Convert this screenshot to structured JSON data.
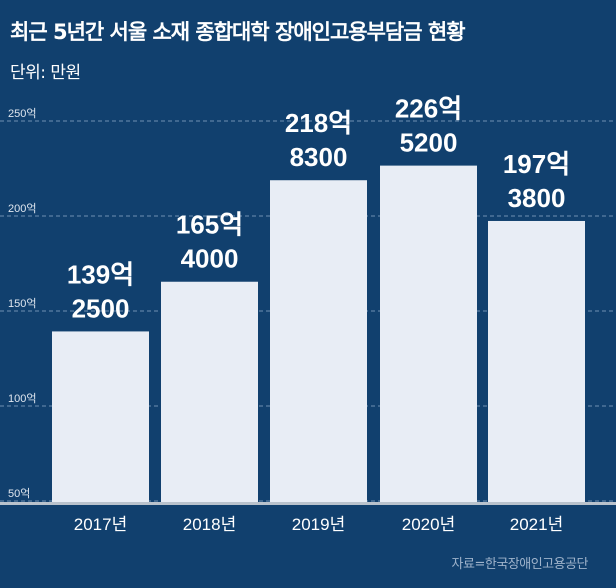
{
  "chart_data": {
    "type": "bar",
    "title": "최근 5년간 서울 소재 종합대학 장애인고용부담금 현황",
    "subtitle": "단위: 만원",
    "source": "자료=한국장애인고용공단",
    "categories": [
      "2017년",
      "2018년",
      "2019년",
      "2020년",
      "2021년"
    ],
    "values": [
      1392500,
      1654000,
      2188300,
      2265200,
      1973800
    ],
    "value_labels": [
      [
        "139억",
        "2500"
      ],
      [
        "165억",
        "4000"
      ],
      [
        "218억",
        "8300"
      ],
      [
        "226억",
        "5200"
      ],
      [
        "197억",
        "3800"
      ]
    ],
    "ylim_eok": [
      50,
      250
    ],
    "yticks": [
      {
        "v": 250,
        "label": "250억"
      },
      {
        "v": 200,
        "label": "200억"
      },
      {
        "v": 150,
        "label": "150억"
      },
      {
        "v": 100,
        "label": "100억"
      },
      {
        "v": 50,
        "label": "50억"
      }
    ],
    "grid": true,
    "colors": {
      "background": "#11406e",
      "bar": "#e8edf5",
      "grid": "#6f8fb3"
    }
  }
}
